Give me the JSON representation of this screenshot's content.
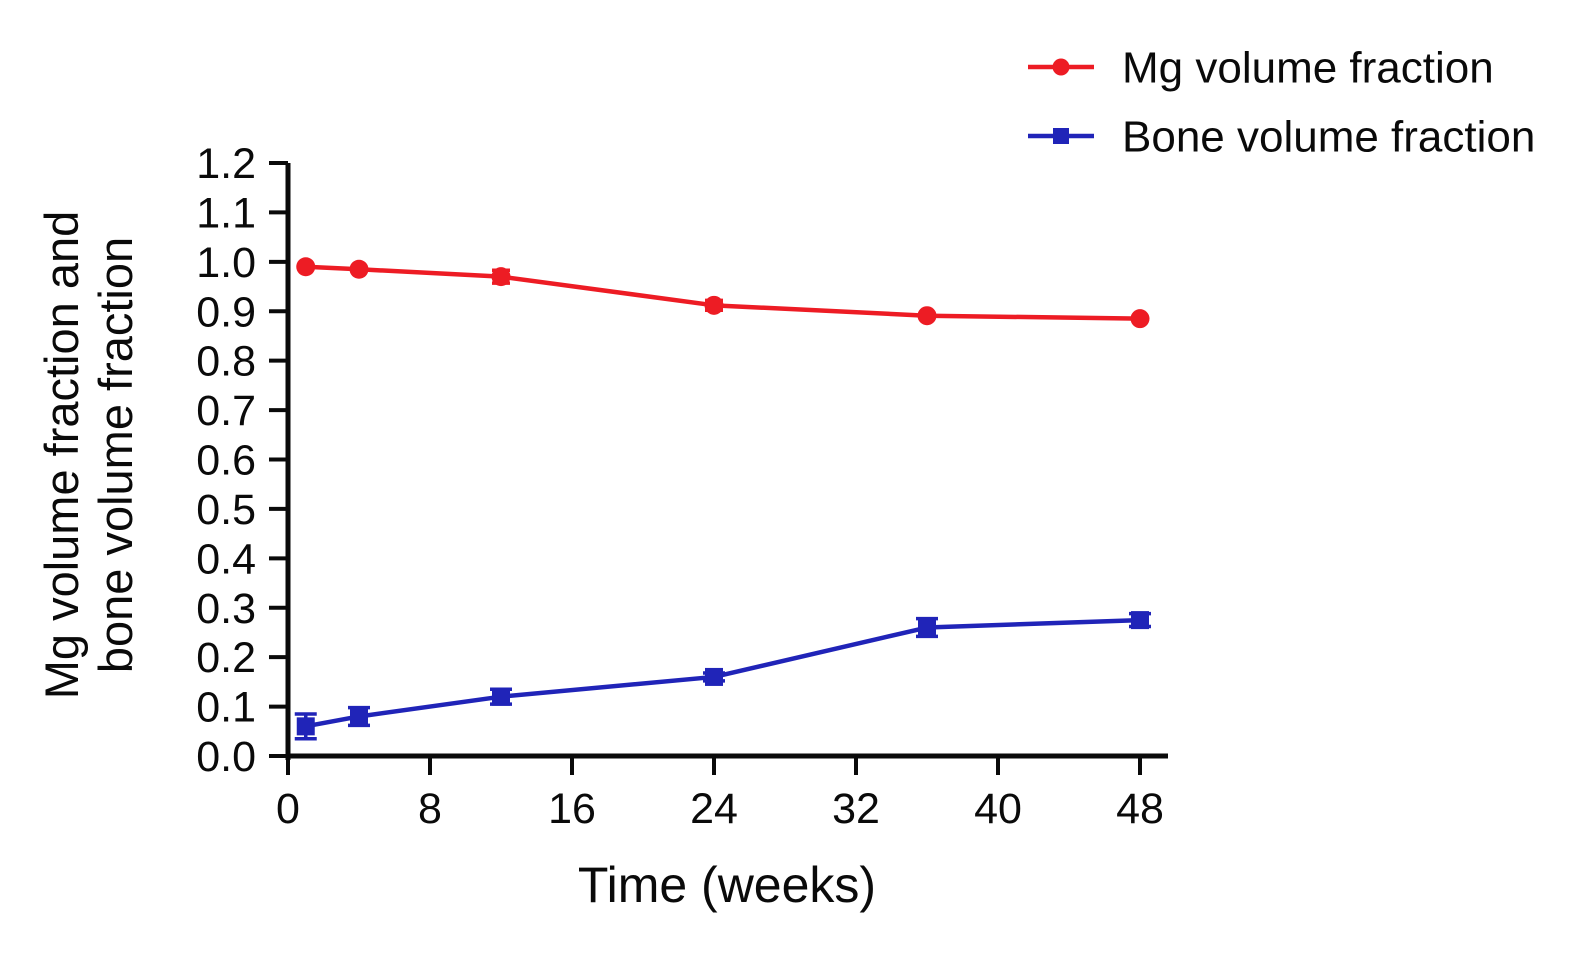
{
  "figure": {
    "background_color": "#ffffff",
    "axis_color": "#0a0a0a",
    "text_color": "#0a0a0a"
  },
  "chart_data": {
    "type": "line",
    "title": "",
    "xlabel": "Time (weeks)",
    "ylabel": "Mg volume fraction and bone volume fraction",
    "ylabel_line1": "Mg volume fraction and",
    "ylabel_line2": "bone volume fraction",
    "xlim": [
      0,
      48
    ],
    "ylim": [
      0,
      1.2
    ],
    "x_ticks": [
      0,
      8,
      16,
      24,
      32,
      40,
      48
    ],
    "y_ticks": [
      "0.0",
      "0.1",
      "0.2",
      "0.3",
      "0.4",
      "0.5",
      "0.6",
      "0.7",
      "0.8",
      "0.9",
      "1.0",
      "1.1",
      "1.2"
    ],
    "grid": false,
    "legend_position": "top-right",
    "x": [
      1,
      4,
      12,
      24,
      36,
      48
    ],
    "series": [
      {
        "name": "Mg volume fraction",
        "color": "#ed1c24",
        "marker": "circle",
        "values": [
          0.99,
          0.985,
          0.97,
          0.912,
          0.891,
          0.885
        ],
        "errors": [
          0,
          0,
          0.013,
          0.01,
          0,
          0
        ]
      },
      {
        "name": "Bone volume fraction",
        "color": "#2024b8",
        "marker": "square",
        "values": [
          0.06,
          0.08,
          0.12,
          0.16,
          0.26,
          0.275
        ],
        "errors": [
          0.025,
          0.018,
          0.015,
          0.008,
          0.018,
          0.013
        ]
      }
    ]
  }
}
